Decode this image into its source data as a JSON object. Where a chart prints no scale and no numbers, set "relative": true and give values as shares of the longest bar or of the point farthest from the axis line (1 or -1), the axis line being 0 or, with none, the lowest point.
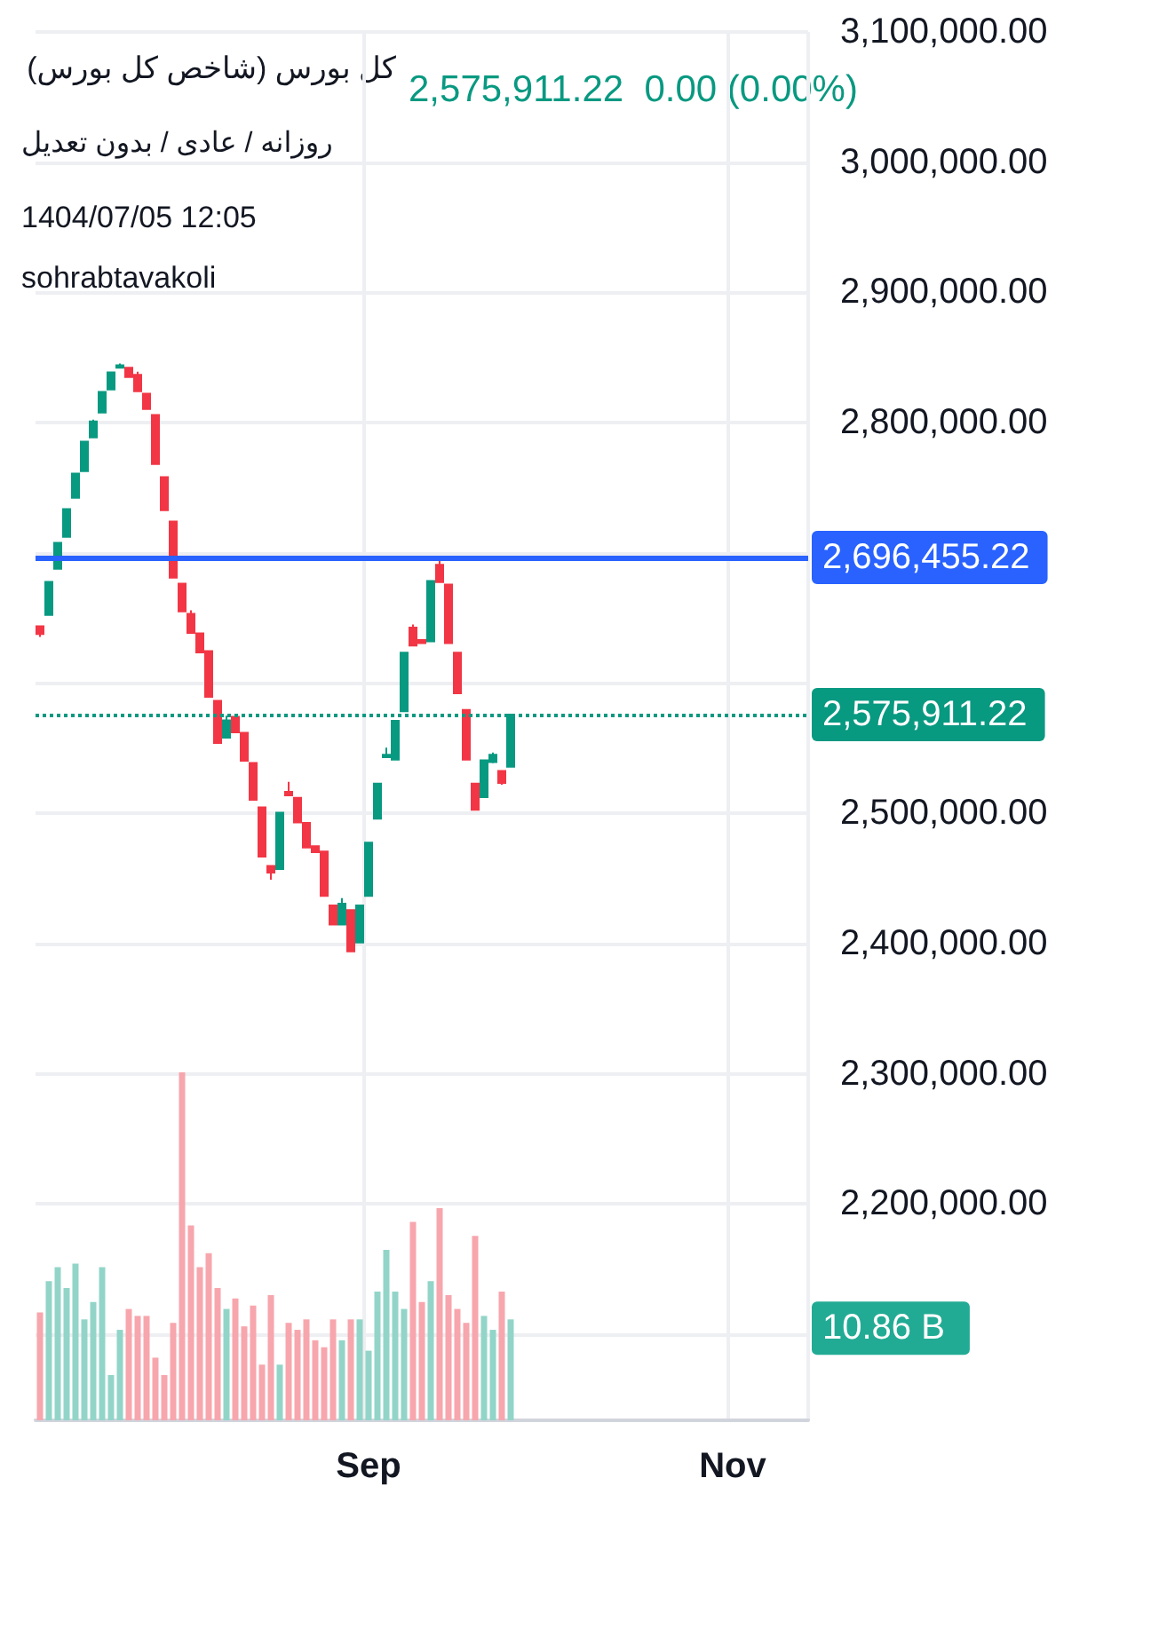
{
  "chart_data": [
    {
      "type": "candlestick",
      "title": "کل بورس (شاخص کل بورس)",
      "subtitle": "روزانه / عادی / بدون تعدیل",
      "annotations": [
        "2,575,911.22  0.00 (0.00%)",
        "1404/07/05 12:05",
        "sohrabtavakoli"
      ],
      "categories": [
        null,
        null,
        null,
        null,
        null,
        null,
        null,
        null,
        null,
        null,
        null,
        null,
        null,
        null,
        null,
        null,
        null,
        null,
        null,
        null,
        null,
        null,
        null,
        null,
        null,
        null,
        null,
        null,
        null,
        null,
        null,
        null,
        null,
        null,
        null,
        null,
        null,
        "Sep",
        null,
        null,
        null,
        null,
        null,
        null,
        null,
        null,
        null,
        null,
        null,
        null,
        null,
        null,
        null,
        null,
        null,
        null,
        null,
        null,
        null,
        null,
        null,
        null,
        null,
        null,
        null,
        null,
        null,
        null,
        null,
        null,
        null,
        null,
        null,
        null,
        null,
        null,
        null,
        null,
        "Nov",
        null,
        null,
        null,
        null,
        null,
        null,
        null,
        null
      ],
      "ohlc": [
        [
          2643650,
          2643650,
          2635470,
          2637740
        ],
        [
          2652290,
          2677740,
          2652290,
          2677740
        ],
        [
          2687740,
          2707740,
          2687740,
          2707740
        ],
        [
          2712280,
          2733640,
          2712280,
          2733640
        ],
        [
          2742280,
          2760910,
          2742280,
          2760910
        ],
        [
          2762730,
          2785460,
          2762730,
          2785460
        ],
        [
          2788640,
          2802270,
          2788640,
          2800910
        ],
        [
          2807730,
          2823640,
          2807730,
          2823640
        ],
        [
          2825450,
          2838630,
          2825450,
          2838630
        ],
        [
          2842270,
          2845450,
          2842270,
          2844090
        ],
        [
          2842270,
          2842270,
          2835000,
          2835000
        ],
        [
          2836810,
          2839090,
          2824090,
          2824090
        ],
        [
          2822270,
          2822270,
          2810450,
          2810450
        ],
        [
          2805910,
          2805910,
          2768180,
          2768180
        ],
        [
          2758180,
          2758180,
          2732730,
          2732730
        ],
        [
          2724100,
          2724100,
          2680920,
          2680920
        ],
        [
          2676380,
          2676380,
          2655010,
          2655010
        ],
        [
          2653200,
          2655920,
          2638650,
          2638650
        ],
        [
          2638200,
          2638200,
          2623650,
          2623650
        ],
        [
          2624560,
          2624560,
          2589570,
          2589570
        ],
        [
          2586380,
          2586380,
          2554110,
          2554110
        ],
        [
          2558210,
          2575020,
          2558210,
          2571390
        ],
        [
          2574110,
          2574110,
          2562300,
          2562300
        ],
        [
          2561840,
          2561840,
          2540480,
          2540480
        ],
        [
          2538660,
          2538660,
          2510480,
          2510480
        ],
        [
          2504570,
          2504570,
          2466850,
          2466850
        ],
        [
          2459580,
          2459580,
          2449130,
          2454580
        ],
        [
          2457310,
          2500490,
          2457310,
          2500490
        ],
        [
          2516520,
          2524310,
          2513770,
          2513770
        ],
        [
          2511930,
          2511930,
          2493120,
          2493120
        ],
        [
          2492660,
          2492660,
          2473860,
          2473860
        ],
        [
          2474780,
          2474780,
          2470190,
          2470190
        ],
        [
          2470650,
          2470650,
          2436710,
          2436710
        ],
        [
          2429370,
          2429370,
          2414690,
          2414690
        ],
        [
          2414690,
          2434870,
          2414690,
          2430740
        ],
        [
          2425700,
          2425700,
          2394050,
          2394050
        ],
        [
          2400920,
          2429370,
          2400920,
          2429370
        ],
        [
          2436710,
          2477530,
          2436710,
          2477530
        ],
        [
          2495870,
          2522940,
          2495870,
          2522940
        ],
        [
          2543130,
          2550460,
          2543130,
          2544960
        ],
        [
          2541290,
          2571110,
          2541290,
          2571110
        ],
        [
          2578440,
          2623400,
          2578440,
          2623400
        ],
        [
          2642660,
          2644960,
          2628900,
          2628900
        ],
        [
          2633030,
          2633030,
          2630740,
          2630740
        ],
        [
          2632110,
          2678440,
          2632110,
          2678440
        ],
        [
          2690830,
          2696455.22,
          2677520,
          2677520
        ],
        [
          2675690,
          2675690,
          2630740,
          2630740
        ],
        [
          2623400,
          2623400,
          2592210,
          2592210
        ],
        [
          2579360,
          2579360,
          2541290,
          2541290
        ],
        [
          2522940,
          2522940,
          2502760,
          2502760
        ],
        [
          2512390,
          2540830,
          2512390,
          2540830
        ],
        [
          2539460,
          2546790,
          2538540,
          2544960
        ],
        [
          2532570,
          2532570,
          2522020,
          2523400
        ],
        [
          2535790,
          2575911.22,
          2535790,
          2575911.22
        ],
        null,
        null,
        null,
        null,
        null,
        null,
        null,
        null,
        null,
        null,
        null,
        null,
        null,
        null,
        null,
        null,
        null,
        null,
        null,
        null,
        null,
        null,
        null,
        null,
        null,
        null,
        null,
        null,
        null,
        null,
        null,
        null,
        null
      ],
      "colors": [
        "#f23645",
        "#089981",
        "#089981",
        "#089981",
        "#089981",
        "#089981",
        "#089981",
        "#089981",
        "#089981",
        "#089981",
        "#f23645",
        "#f23645",
        "#f23645",
        "#f23645",
        "#f23645",
        "#f23645",
        "#f23645",
        "#f23645",
        "#f23645",
        "#f23645",
        "#f23645",
        "#089981",
        "#f23645",
        "#f23645",
        "#f23645",
        "#f23645",
        "#f23645",
        "#089981",
        "#f23645",
        "#f23645",
        "#f23645",
        "#f23645",
        "#f23645",
        "#f23645",
        "#089981",
        "#f23645",
        "#089981",
        "#089981",
        "#089981",
        "#089981",
        "#089981",
        "#089981",
        "#f23645",
        "#f23645",
        "#089981",
        "#f23645",
        "#f23645",
        "#f23645",
        "#f23645",
        "#f23645",
        "#089981",
        "#089981",
        "#f23645",
        "#089981",
        null,
        null,
        null,
        null,
        null,
        null,
        null,
        null,
        null,
        null,
        null,
        null,
        null,
        null,
        null,
        null,
        null,
        null,
        null,
        null,
        null,
        null,
        null,
        null,
        null,
        null,
        null,
        null,
        null,
        null,
        null,
        null,
        null
      ],
      "ylim": [
        2034000,
        3100000
      ],
      "yticks": [
        {
          "value": 2100000,
          "label": null
        },
        {
          "value": 2200000,
          "label": "2,200,000.00"
        },
        {
          "value": 2300000,
          "label": "2,300,000.00"
        },
        {
          "value": 2400000,
          "label": "2,400,000.00"
        },
        {
          "value": 2500000,
          "label": "2,500,000.00"
        },
        {
          "value": 2600000,
          "label": null
        },
        {
          "value": 2700000,
          "label": null
        },
        {
          "value": 2800000,
          "label": "2,800,000.00"
        },
        {
          "value": 2900000,
          "label": "2,900,000.00"
        },
        {
          "value": 3000000,
          "label": "3,000,000.00"
        },
        {
          "value": 3100000,
          "label": "3,100,000.00"
        }
      ],
      "ref_lines": [
        {
          "axis": "y",
          "value": 2696455.22,
          "label": "2,696,455.22",
          "color": "#2962ff",
          "line_style": "solid"
        },
        {
          "axis": "y",
          "value": 2575911.22,
          "label": "2,575,911.22",
          "color": "#089981",
          "line_style": "dotted"
        }
      ],
      "grid": true
    },
    {
      "type": "bar",
      "relative": true,
      "tick_labels": false,
      "annotations": [
        "10.86 B"
      ],
      "categories": [
        null,
        null,
        null,
        null,
        null,
        null,
        null,
        null,
        null,
        null,
        null,
        null,
        null,
        null,
        null,
        null,
        null,
        null,
        null,
        null,
        null,
        null,
        null,
        null,
        null,
        null,
        null,
        null,
        null,
        null,
        null,
        null,
        null,
        null,
        null,
        null,
        null,
        null,
        null,
        null,
        null,
        null,
        null,
        null,
        null,
        null,
        null,
        null,
        null,
        null,
        null,
        null,
        null,
        null,
        null,
        null,
        null,
        null,
        null,
        null,
        null,
        null,
        null,
        null,
        null,
        null,
        null,
        null,
        null,
        null,
        null,
        null,
        null,
        null,
        null,
        null,
        null,
        null,
        null,
        null,
        null,
        null,
        null,
        null,
        null,
        null,
        null
      ],
      "values": [
        0.31,
        0.4,
        0.44,
        0.38,
        0.45,
        0.29,
        0.34,
        0.44,
        0.13,
        0.26,
        0.32,
        0.3,
        0.3,
        0.18,
        0.13,
        0.28,
        1,
        0.56,
        0.44,
        0.48,
        0.38,
        0.32,
        0.35,
        0.27,
        0.33,
        0.16,
        0.36,
        0.16,
        0.28,
        0.26,
        0.29,
        0.23,
        0.21,
        0.29,
        0.23,
        0.29,
        0.29,
        0.2,
        0.37,
        0.49,
        0.37,
        0.32,
        0.57,
        0.34,
        0.4,
        0.61,
        0.36,
        0.32,
        0.28,
        0.53,
        0.3,
        0.26,
        0.37,
        0.29,
        null,
        null,
        null,
        null,
        null,
        null,
        null,
        null,
        null,
        null,
        null,
        null,
        null,
        null,
        null,
        null,
        null,
        null,
        null,
        null,
        null,
        null,
        null,
        null,
        null,
        null,
        null,
        null,
        null,
        null,
        null,
        null,
        null
      ],
      "colors": [
        "#f7a6ad",
        "#92d5c8",
        "#92d5c8",
        "#92d5c8",
        "#92d5c8",
        "#92d5c8",
        "#92d5c8",
        "#92d5c8",
        "#92d5c8",
        "#92d5c8",
        "#f7a6ad",
        "#f7a6ad",
        "#f7a6ad",
        "#f7a6ad",
        "#f7a6ad",
        "#f7a6ad",
        "#f7a6ad",
        "#f7a6ad",
        "#f7a6ad",
        "#f7a6ad",
        "#f7a6ad",
        "#92d5c8",
        "#f7a6ad",
        "#f7a6ad",
        "#f7a6ad",
        "#f7a6ad",
        "#f7a6ad",
        "#92d5c8",
        "#f7a6ad",
        "#f7a6ad",
        "#f7a6ad",
        "#f7a6ad",
        "#f7a6ad",
        "#f7a6ad",
        "#92d5c8",
        "#f7a6ad",
        "#92d5c8",
        "#92d5c8",
        "#92d5c8",
        "#92d5c8",
        "#92d5c8",
        "#92d5c8",
        "#f7a6ad",
        "#f7a6ad",
        "#92d5c8",
        "#f7a6ad",
        "#f7a6ad",
        "#f7a6ad",
        "#f7a6ad",
        "#f7a6ad",
        "#92d5c8",
        "#92d5c8",
        "#f7a6ad",
        "#92d5c8",
        null,
        null,
        null,
        null,
        null,
        null,
        null,
        null,
        null,
        null,
        null,
        null,
        null,
        null,
        null,
        null,
        null,
        null,
        null,
        null,
        null,
        null,
        null,
        null,
        null,
        null,
        null,
        null,
        null,
        null,
        null,
        null,
        null
      ]
    }
  ]
}
